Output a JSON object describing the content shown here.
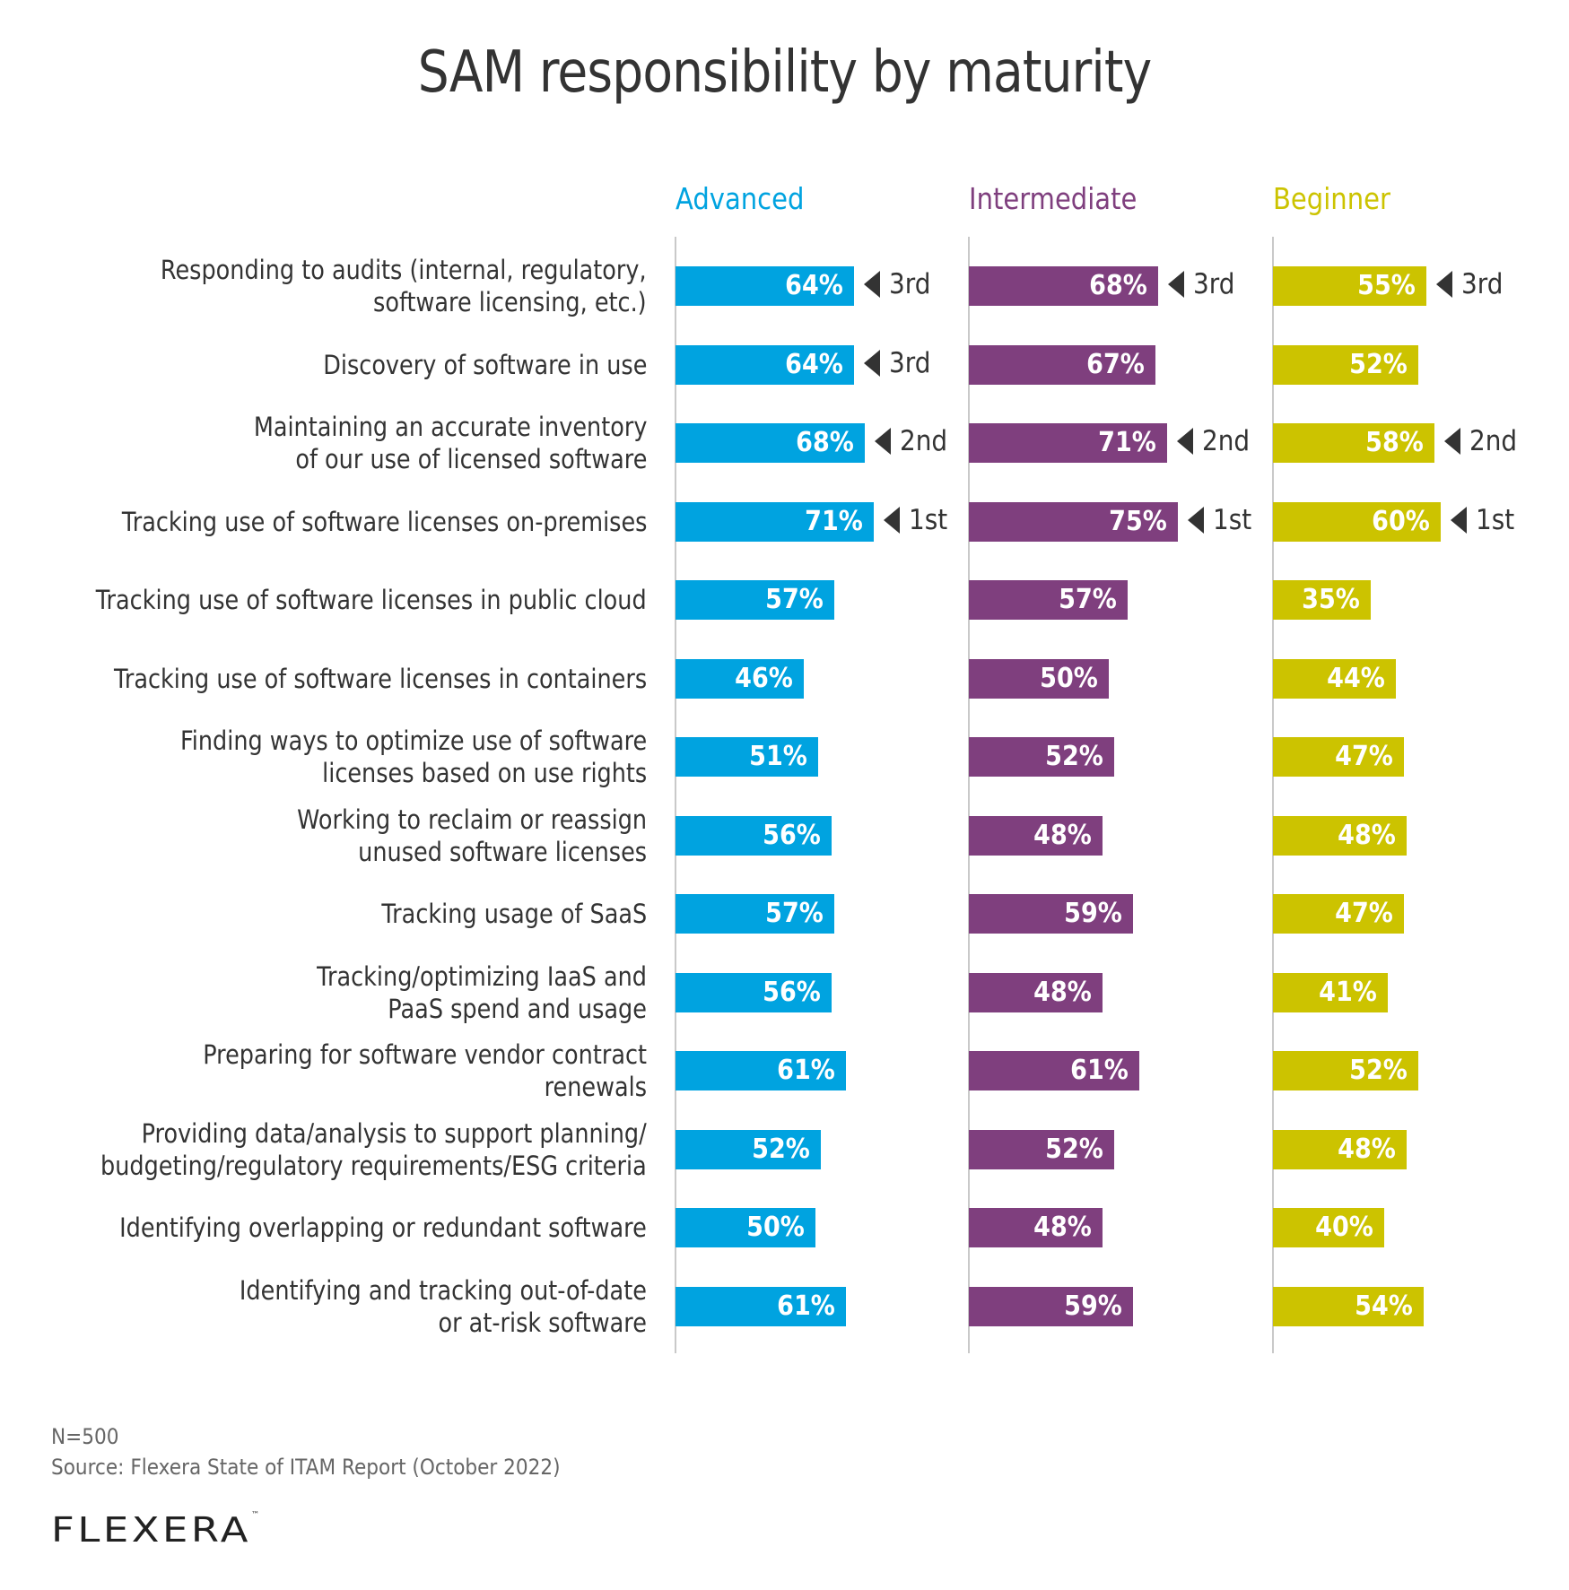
{
  "chart_data": {
    "type": "bar",
    "title": "SAM responsibility by maturity",
    "xlabel": "",
    "ylabel": "",
    "xlim": [
      0,
      100
    ],
    "grid": false,
    "legend": "column-headers-top",
    "categories": [
      "Responding to audits (internal, regulatory,\nsoftware licensing, etc.)",
      "Discovery of software in use",
      "Maintaining an accurate inventory\nof our use of licensed software",
      "Tracking use of software licenses on-premises",
      "Tracking use of software licenses in public cloud",
      "Tracking use of software licenses in containers",
      "Finding ways to optimize use of software\nlicenses based on use rights",
      "Working to reclaim or reassign\nunused software licenses",
      "Tracking usage of SaaS",
      "Tracking/optimizing IaaS and\nPaaS spend and usage",
      "Preparing for software vendor contract renewals",
      "Providing data/analysis to support planning/\nbudgeting/regulatory requirements/ESG criteria",
      "Identifying overlapping or redundant software",
      "Identifying and tracking out-of-date\nor at-risk software"
    ],
    "series": [
      {
        "name": "Advanced",
        "color": "#00A3E0",
        "values": [
          64,
          64,
          68,
          71,
          57,
          46,
          51,
          56,
          57,
          56,
          61,
          52,
          50,
          61
        ],
        "ranks": [
          "3rd",
          "3rd",
          "2nd",
          "1st",
          null,
          null,
          null,
          null,
          null,
          null,
          null,
          null,
          null,
          null
        ]
      },
      {
        "name": "Intermediate",
        "color": "#7F3F7E",
        "values": [
          68,
          67,
          71,
          75,
          57,
          50,
          52,
          48,
          59,
          48,
          61,
          52,
          48,
          59
        ],
        "ranks": [
          "3rd",
          null,
          "2nd",
          "1st",
          null,
          null,
          null,
          null,
          null,
          null,
          null,
          null,
          null,
          null
        ]
      },
      {
        "name": "Beginner",
        "color": "#CCC300",
        "values": [
          55,
          52,
          58,
          60,
          35,
          44,
          47,
          48,
          47,
          41,
          52,
          48,
          40,
          54
        ],
        "ranks": [
          "3rd",
          null,
          "2nd",
          "1st",
          null,
          null,
          null,
          null,
          null,
          null,
          null,
          null,
          null,
          null
        ]
      }
    ],
    "value_suffix": "%",
    "notes": [
      "N=500",
      "Source: Flexera State of ITAM Report (October 2022)"
    ]
  },
  "footer": {
    "sample_size": "N=500",
    "source": "Source: Flexera State of ITAM Report (October 2022)",
    "logo_text": "FLEXERA",
    "logo_tm": "™"
  },
  "colors": {
    "text": "#333333",
    "axis": "#C9C9C9",
    "note": "#666666"
  }
}
